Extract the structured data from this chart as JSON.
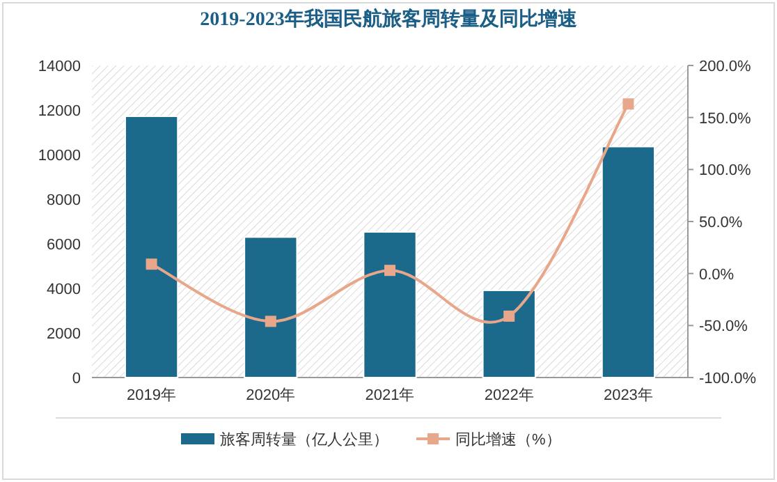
{
  "chart_data": {
    "type": "bar",
    "title": "2019-2023年我国民航旅客周转量及同比增速",
    "categories": [
      "2019年",
      "2020年",
      "2021年",
      "2022年",
      "2023年"
    ],
    "series": [
      {
        "name": "旅客周转量（亿人公里）",
        "color": "#1b6a8c",
        "values": [
          11720,
          6300,
          6530,
          3910,
          10360
        ]
      },
      {
        "name": "同比增速（%）",
        "type": "line",
        "axis": "y2",
        "color": "#e8a68a",
        "marker": "square",
        "values": [
          9,
          -46,
          3,
          -41,
          163
        ]
      }
    ],
    "ylim": [
      0,
      14000
    ],
    "yticks": [
      0,
      2000,
      4000,
      6000,
      8000,
      10000,
      12000,
      14000
    ],
    "y2lim": [
      -100,
      200
    ],
    "y2ticks": [
      {
        "value": -100,
        "label": "-100.0%"
      },
      {
        "value": -50,
        "label": "-50.0%"
      },
      {
        "value": 0,
        "label": "0.0%"
      },
      {
        "value": 50,
        "label": "50.0%"
      },
      {
        "value": 100,
        "label": "100.0%"
      },
      {
        "value": 150,
        "label": "150.0%"
      },
      {
        "value": 200,
        "label": "200.0%"
      }
    ],
    "legend": "bottom",
    "grid": false
  }
}
